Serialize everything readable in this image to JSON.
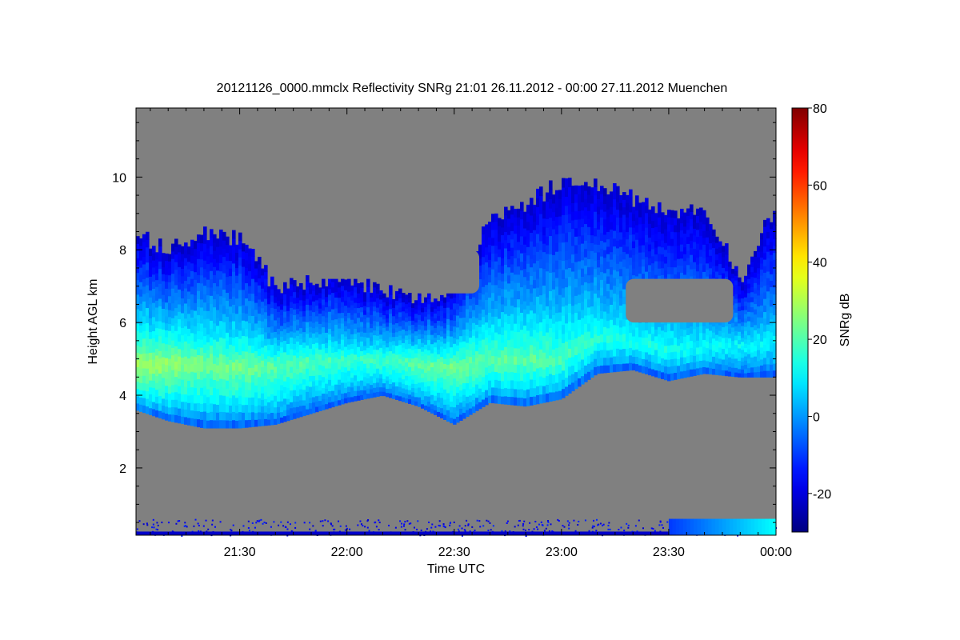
{
  "chart_data": {
    "type": "heatmap",
    "title": "20121126_0000.mmclx Reflectivity SNRg   21:01 26.11.2012 - 00:00 27.11.2012 Muenchen",
    "xlabel": "Time UTC",
    "ylabel": "Height AGL km",
    "colorbar_label": "SNRg dB",
    "x_range": [
      "21:01",
      "00:00"
    ],
    "x_ticks": [
      "21:30",
      "22:00",
      "22:30",
      "23:00",
      "23:30",
      "00:00"
    ],
    "ylim": [
      0.15,
      11.9
    ],
    "y_ticks": [
      2,
      4,
      6,
      8,
      10
    ],
    "clim": [
      -30,
      80
    ],
    "colorbar_ticks": [
      -20,
      0,
      20,
      40,
      60,
      80
    ],
    "colormap": "jet",
    "background_color": "#808080",
    "cloud_layer": [
      {
        "time": "21:01",
        "base_km": 3.6,
        "top_km": 8.4,
        "core_km": 4.8,
        "peak_dB": 30
      },
      {
        "time": "21:10",
        "base_km": 3.3,
        "top_km": 8.0,
        "core_km": 4.9,
        "peak_dB": 28
      },
      {
        "time": "21:20",
        "base_km": 3.1,
        "top_km": 8.5,
        "core_km": 4.9,
        "peak_dB": 24
      },
      {
        "time": "21:30",
        "base_km": 3.1,
        "top_km": 8.3,
        "core_km": 4.8,
        "peak_dB": 24
      },
      {
        "time": "21:40",
        "base_km": 3.2,
        "top_km": 7.0,
        "core_km": 4.8,
        "peak_dB": 22
      },
      {
        "time": "21:50",
        "base_km": 3.5,
        "top_km": 7.1,
        "core_km": 5.0,
        "peak_dB": 20
      },
      {
        "time": "22:00",
        "base_km": 3.8,
        "top_km": 7.2,
        "core_km": 5.0,
        "peak_dB": 18
      },
      {
        "time": "22:10",
        "base_km": 4.0,
        "top_km": 6.9,
        "core_km": 5.0,
        "peak_dB": 18
      },
      {
        "time": "22:20",
        "base_km": 3.7,
        "top_km": 6.7,
        "core_km": 4.9,
        "peak_dB": 22
      },
      {
        "time": "22:30",
        "base_km": 3.2,
        "top_km": 6.9,
        "core_km": 4.8,
        "peak_dB": 24
      },
      {
        "time": "22:40",
        "base_km": 3.8,
        "top_km": 8.9,
        "core_km": 5.0,
        "peak_dB": 22
      },
      {
        "time": "22:50",
        "base_km": 3.7,
        "top_km": 9.2,
        "core_km": 5.0,
        "peak_dB": 22
      },
      {
        "time": "23:00",
        "base_km": 3.9,
        "top_km": 9.9,
        "core_km": 5.0,
        "peak_dB": 20
      },
      {
        "time": "23:10",
        "base_km": 4.6,
        "top_km": 9.8,
        "core_km": 5.6,
        "peak_dB": 16
      },
      {
        "time": "23:20",
        "base_km": 4.7,
        "top_km": 9.4,
        "core_km": 5.5,
        "peak_dB": 14
      },
      {
        "time": "23:30",
        "base_km": 4.4,
        "top_km": 9.0,
        "core_km": 5.3,
        "peak_dB": 14
      },
      {
        "time": "23:40",
        "base_km": 4.6,
        "top_km": 9.2,
        "core_km": 5.3,
        "peak_dB": 12
      },
      {
        "time": "23:50",
        "base_km": 4.5,
        "top_km": 7.2,
        "core_km": 5.4,
        "peak_dB": 12
      },
      {
        "time": "00:00",
        "base_km": 4.5,
        "top_km": 9.2,
        "core_km": 5.5,
        "peak_dB": 10
      }
    ],
    "gaps": [
      {
        "time_start": "21:50",
        "time_end": "22:15",
        "bottom_km": 7.2,
        "top_km": 8.3
      },
      {
        "time_start": "22:18",
        "time_end": "22:37",
        "bottom_km": 6.8,
        "top_km": 8.0
      },
      {
        "time_start": "23:18",
        "time_end": "23:48",
        "bottom_km": 6.0,
        "top_km": 7.2
      }
    ],
    "boundary_layer_returns": {
      "bottom_km": 0.15,
      "top_km": 0.6,
      "strong_after": "23:30"
    }
  }
}
